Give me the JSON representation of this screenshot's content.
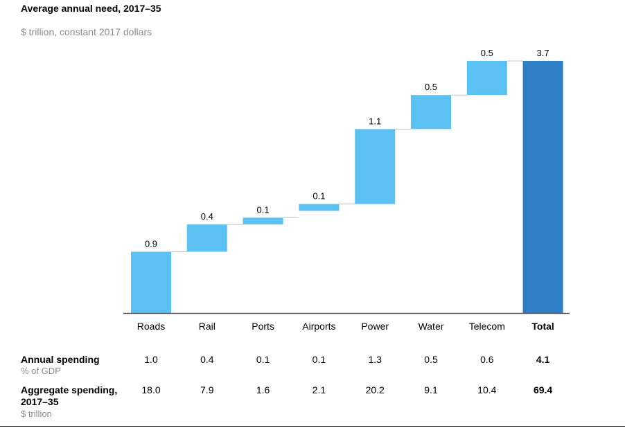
{
  "title": "Average annual need, 2017–35",
  "subtitle": "$ trillion, constant 2017 dollars",
  "colors": {
    "increment": "#5bc1f2",
    "total": "#2f7fc6",
    "axis": "#555555",
    "connector": "#bfbfbf"
  },
  "chart_data": {
    "type": "bar",
    "subtype": "waterfall",
    "title": "Average annual need, 2017–35",
    "ylabel": "$ trillion, constant 2017 dollars",
    "categories": [
      "Roads",
      "Rail",
      "Ports",
      "Airports",
      "Power",
      "Water",
      "Telecom",
      "Total"
    ],
    "values": [
      0.9,
      0.4,
      0.1,
      0.1,
      1.1,
      0.5,
      0.5,
      3.7
    ],
    "value_labels": [
      "0.9",
      "0.4",
      "0.1",
      "0.1",
      "1.1",
      "0.5",
      "0.5",
      "3.7"
    ],
    "bases": [
      0,
      0.9,
      1.3,
      1.5,
      1.6,
      2.7,
      3.2,
      0
    ],
    "is_total": [
      false,
      false,
      false,
      false,
      false,
      false,
      false,
      true
    ],
    "ylim": [
      0,
      3.7
    ],
    "grid": false,
    "legend": "none"
  },
  "table": {
    "rows": [
      {
        "label": "Annual spending",
        "sublabel": "% of GDP",
        "values": [
          "1.0",
          "0.4",
          "0.1",
          "0.1",
          "1.3",
          "0.5",
          "0.6",
          "4.1"
        ]
      },
      {
        "label": "Aggregate spending, 2017–35",
        "sublabel": "$ trillion",
        "values": [
          "18.0",
          "7.9",
          "1.6",
          "2.1",
          "20.2",
          "9.1",
          "10.4",
          "69.4"
        ]
      }
    ]
  }
}
